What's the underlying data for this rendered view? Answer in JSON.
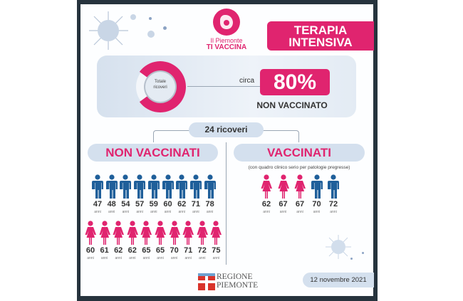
{
  "logo": {
    "line1": "Il Piemonte",
    "line2": "TI VACCINA"
  },
  "title": {
    "line1": "TERAPIA",
    "line2": "INTENSIVA"
  },
  "summary": {
    "donut_label_1": "Totale",
    "donut_label_2": "ricoveri",
    "donut_fraction_unvaccinated": 0.8,
    "circa": "circa",
    "percent": "80%",
    "status": "NON VACCINATO"
  },
  "total": "24 ricoveri",
  "non_vaccinati": {
    "title": "NON VACCINATI",
    "men": [
      "47",
      "48",
      "54",
      "57",
      "59",
      "60",
      "62",
      "71",
      "78"
    ],
    "women": [
      "60",
      "61",
      "62",
      "62",
      "65",
      "65",
      "70",
      "71",
      "72",
      "75"
    ]
  },
  "vaccinati": {
    "title": "VACCINATI",
    "subtitle": "(con quadro clinico serio per patologie pregresse)",
    "people": [
      {
        "sex": "F",
        "age": "62"
      },
      {
        "sex": "F",
        "age": "67"
      },
      {
        "sex": "F",
        "age": "67"
      },
      {
        "sex": "M",
        "age": "70"
      },
      {
        "sex": "M",
        "age": "72"
      }
    ]
  },
  "unit": "anni",
  "footer": {
    "region_line1": "REGIONE",
    "region_line2": "PIEMONTE",
    "date": "12 novembre 2021"
  },
  "colors": {
    "pink": "#e0246f",
    "blue": "#1f5f9a",
    "frame": "#26333d",
    "pill": "#d4e0ee"
  }
}
